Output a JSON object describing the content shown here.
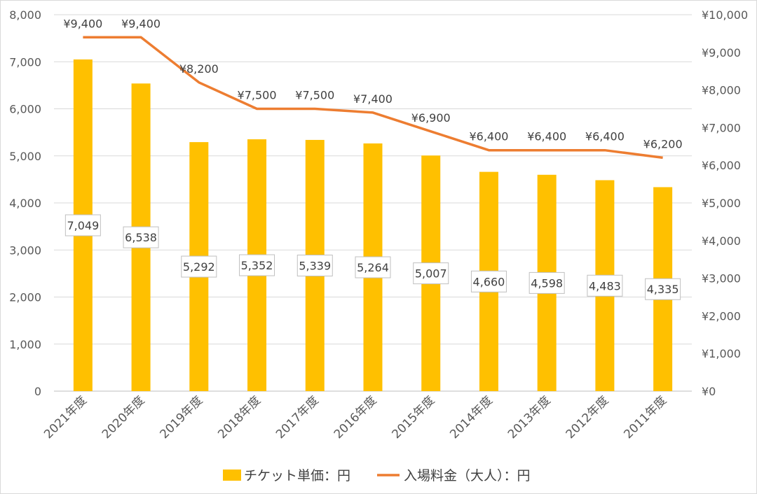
{
  "chart_data": {
    "type": "bar",
    "categories": [
      "2021年度",
      "2020年度",
      "2019年度",
      "2018年度",
      "2017年度",
      "2016年度",
      "2015年度",
      "2014年度",
      "2013年度",
      "2012年度",
      "2011年度"
    ],
    "series": [
      {
        "name": "チケット単価：円",
        "type": "bar",
        "axis": "left",
        "color": "#FFC000",
        "values": [
          7049,
          6538,
          5292,
          5352,
          5339,
          5264,
          5007,
          4660,
          4598,
          4483,
          4335
        ],
        "labels": [
          "7,049",
          "6,538",
          "5,292",
          "5,352",
          "5,339",
          "5,264",
          "5,007",
          "4,660",
          "4,598",
          "4,483",
          "4,335"
        ]
      },
      {
        "name": "入場料金（大人）：円",
        "type": "line",
        "axis": "right",
        "color": "#ED7D31",
        "values": [
          9400,
          9400,
          8200,
          7500,
          7500,
          7400,
          6900,
          6400,
          6400,
          6400,
          6200
        ],
        "labels": [
          "¥9,400",
          "¥9,400",
          "¥8,200",
          "¥7,500",
          "¥7,500",
          "¥7,400",
          "¥6,900",
          "¥6,400",
          "¥6,400",
          "¥6,400",
          "¥6,200"
        ]
      }
    ],
    "ylim_left": [
      0,
      8000
    ],
    "ylim_right": [
      0,
      10000
    ],
    "yticks_left": [
      "0",
      "1,000",
      "2,000",
      "3,000",
      "4,000",
      "5,000",
      "6,000",
      "7,000",
      "8,000"
    ],
    "yticks_right": [
      "¥0",
      "¥1,000",
      "¥2,000",
      "¥3,000",
      "¥4,000",
      "¥5,000",
      "¥6,000",
      "¥7,000",
      "¥8,000",
      "¥9,000",
      "¥10,000"
    ],
    "grid": true,
    "legend_position": "bottom"
  }
}
